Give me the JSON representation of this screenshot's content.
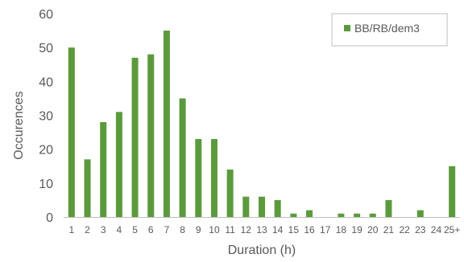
{
  "chart_data": {
    "type": "bar",
    "xlabel": "Duration (h)",
    "ylabel": "Occurences",
    "ylim": [
      0,
      60
    ],
    "yticks": [
      0,
      10,
      20,
      30,
      40,
      50,
      60
    ],
    "grid": false,
    "legend": "top-right",
    "categories": [
      "1",
      "2",
      "3",
      "4",
      "5",
      "6",
      "7",
      "8",
      "9",
      "10",
      "11",
      "12",
      "13",
      "14",
      "15",
      "16",
      "17",
      "18",
      "19",
      "20",
      "21",
      "22",
      "23",
      "24",
      "25+"
    ],
    "series": [
      {
        "name": "BB/RB/dem3",
        "color": "#5b9a3c",
        "values": [
          50,
          17,
          28,
          31,
          47,
          48,
          55,
          35,
          23,
          23,
          14,
          6,
          6,
          5,
          1,
          2,
          0,
          1,
          1,
          1,
          5,
          0,
          2,
          0,
          15
        ]
      }
    ]
  }
}
